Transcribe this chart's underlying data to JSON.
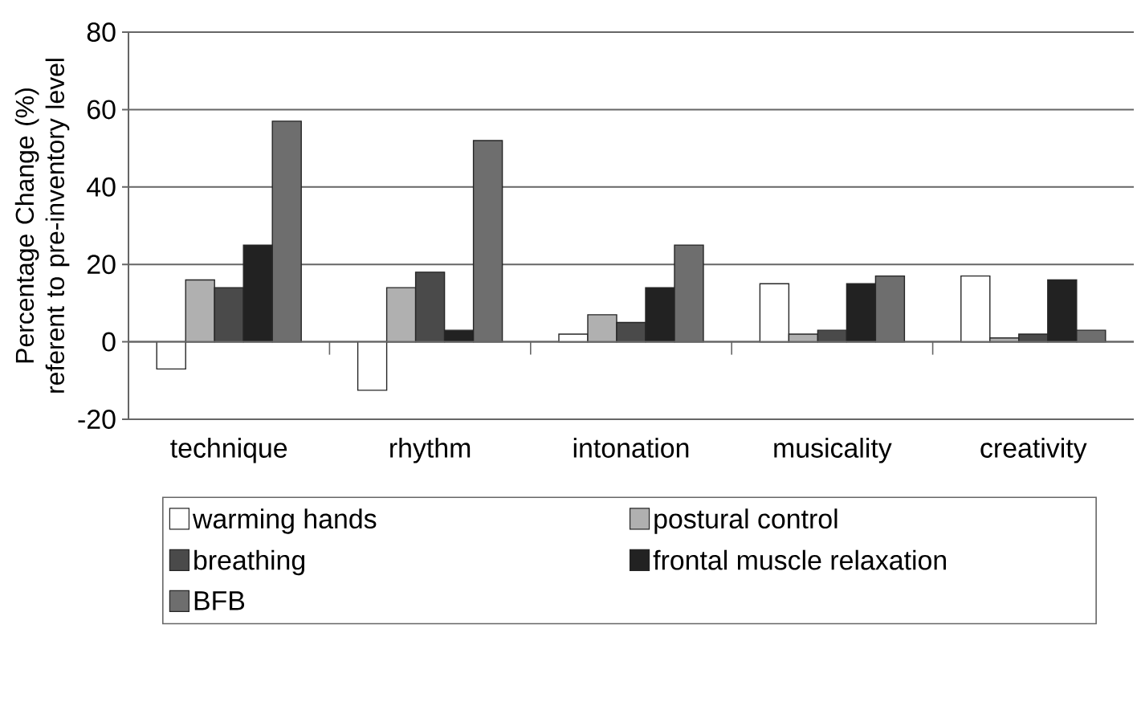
{
  "chart_data": {
    "type": "bar",
    "ylabel": "Percentage Change (%) referent to pre-inventory level",
    "categories": [
      "technique",
      "rhythm",
      "intonation",
      "musicality",
      "creativity"
    ],
    "series": [
      {
        "name": "warming hands",
        "color": "#ffffff",
        "values": [
          -7,
          -12.5,
          2,
          15,
          17
        ]
      },
      {
        "name": "postural control",
        "color": "#b0b0b0",
        "values": [
          16,
          14,
          7,
          2,
          1
        ]
      },
      {
        "name": "breathing",
        "color": "#4a4a4a",
        "values": [
          14,
          18,
          5,
          3,
          2
        ]
      },
      {
        "name": "frontal muscle relaxation",
        "color": "#222222",
        "values": [
          25,
          3,
          14,
          15,
          16
        ]
      },
      {
        "name": "BFB",
        "color": "#6e6e6e",
        "values": [
          57,
          52,
          25,
          17,
          3
        ]
      }
    ],
    "ylim": [
      -20,
      80
    ],
    "yticks": [
      -20,
      0,
      20,
      40,
      60,
      80
    ],
    "grid": "y",
    "legend": "bottom"
  }
}
